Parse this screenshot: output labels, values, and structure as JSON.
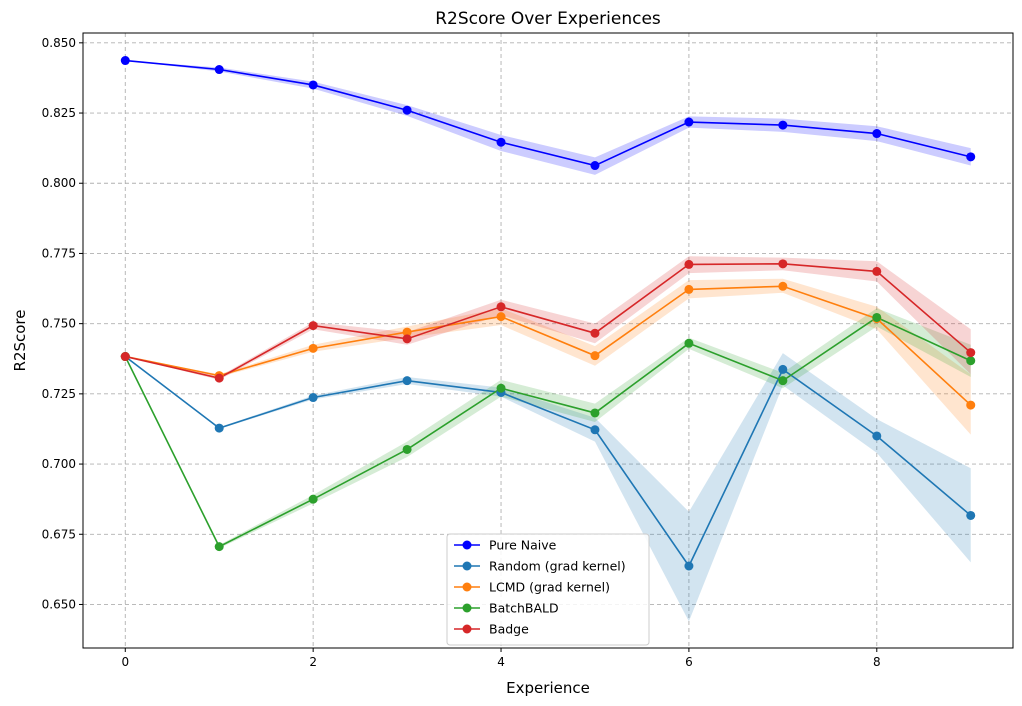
{
  "chart_data": {
    "type": "line",
    "title": "R2Score Over Experiences",
    "xlabel": "Experience",
    "ylabel": "R2Score",
    "x": [
      0,
      1,
      2,
      3,
      4,
      5,
      6,
      7,
      8,
      9
    ],
    "xlim": [
      -0.45,
      9.45
    ],
    "ylim": [
      0.6345,
      0.8535
    ],
    "xticks": [
      0,
      2,
      4,
      6,
      8
    ],
    "yticks": [
      0.65,
      0.675,
      0.7,
      0.725,
      0.75,
      0.775,
      0.8,
      0.825,
      0.85
    ],
    "xtick_labels": [
      "0",
      "2",
      "4",
      "6",
      "8"
    ],
    "ytick_labels": [
      "0.650",
      "0.675",
      "0.700",
      "0.725",
      "0.750",
      "0.775",
      "0.800",
      "0.825",
      "0.850"
    ],
    "grid": true,
    "legend_position": "bottom-center",
    "series": [
      {
        "name": "Pure Naive",
        "color": "#0000ff",
        "values": [
          0.8437,
          0.8405,
          0.835,
          0.826,
          0.8146,
          0.8063,
          0.8218,
          0.8207,
          0.8177,
          0.8094
        ],
        "lower": [
          0.8437,
          0.8398,
          0.8337,
          0.824,
          0.8115,
          0.803,
          0.8198,
          0.8183,
          0.815,
          0.8063
        ],
        "upper": [
          0.8437,
          0.8412,
          0.8362,
          0.8278,
          0.8172,
          0.8092,
          0.8238,
          0.823,
          0.8203,
          0.8125
        ]
      },
      {
        "name": "Random (grad kernel)",
        "color": "#1f77b4",
        "values": [
          0.7383,
          0.7128,
          0.7237,
          0.7297,
          0.7255,
          0.7122,
          0.6637,
          0.7337,
          0.71,
          0.6817
        ],
        "lower": [
          0.7383,
          0.7125,
          0.723,
          0.7285,
          0.724,
          0.708,
          0.644,
          0.728,
          0.704,
          0.665
        ],
        "upper": [
          0.7383,
          0.7131,
          0.7244,
          0.731,
          0.7272,
          0.7165,
          0.683,
          0.7395,
          0.716,
          0.6985
        ]
      },
      {
        "name": "LCMD (grad kernel)",
        "color": "#ff7f0e",
        "values": [
          0.7383,
          0.7315,
          0.7412,
          0.747,
          0.7525,
          0.7386,
          0.7622,
          0.7633,
          0.7518,
          0.721
        ],
        "lower": [
          0.7383,
          0.731,
          0.74,
          0.745,
          0.7495,
          0.735,
          0.759,
          0.761,
          0.748,
          0.7105
        ],
        "upper": [
          0.7383,
          0.732,
          0.7425,
          0.749,
          0.7555,
          0.742,
          0.7655,
          0.766,
          0.756,
          0.732
        ]
      },
      {
        "name": "BatchBALD",
        "color": "#2ca02c",
        "values": [
          0.7383,
          0.6706,
          0.6875,
          0.7052,
          0.727,
          0.7182,
          0.743,
          0.7297,
          0.7522,
          0.7368
        ],
        "lower": [
          0.7383,
          0.67,
          0.686,
          0.7025,
          0.724,
          0.715,
          0.741,
          0.727,
          0.749,
          0.731
        ],
        "upper": [
          0.7383,
          0.6712,
          0.689,
          0.708,
          0.73,
          0.7215,
          0.745,
          0.7325,
          0.7555,
          0.7425
        ]
      },
      {
        "name": "Badge",
        "color": "#d62728",
        "values": [
          0.7383,
          0.7306,
          0.7493,
          0.7446,
          0.756,
          0.7466,
          0.7711,
          0.7713,
          0.7686,
          0.7397
        ],
        "lower": [
          0.7383,
          0.73,
          0.748,
          0.7425,
          0.753,
          0.743,
          0.768,
          0.769,
          0.765,
          0.732
        ],
        "upper": [
          0.7383,
          0.7312,
          0.7505,
          0.747,
          0.7585,
          0.75,
          0.774,
          0.7735,
          0.7722,
          0.748
        ]
      }
    ]
  }
}
